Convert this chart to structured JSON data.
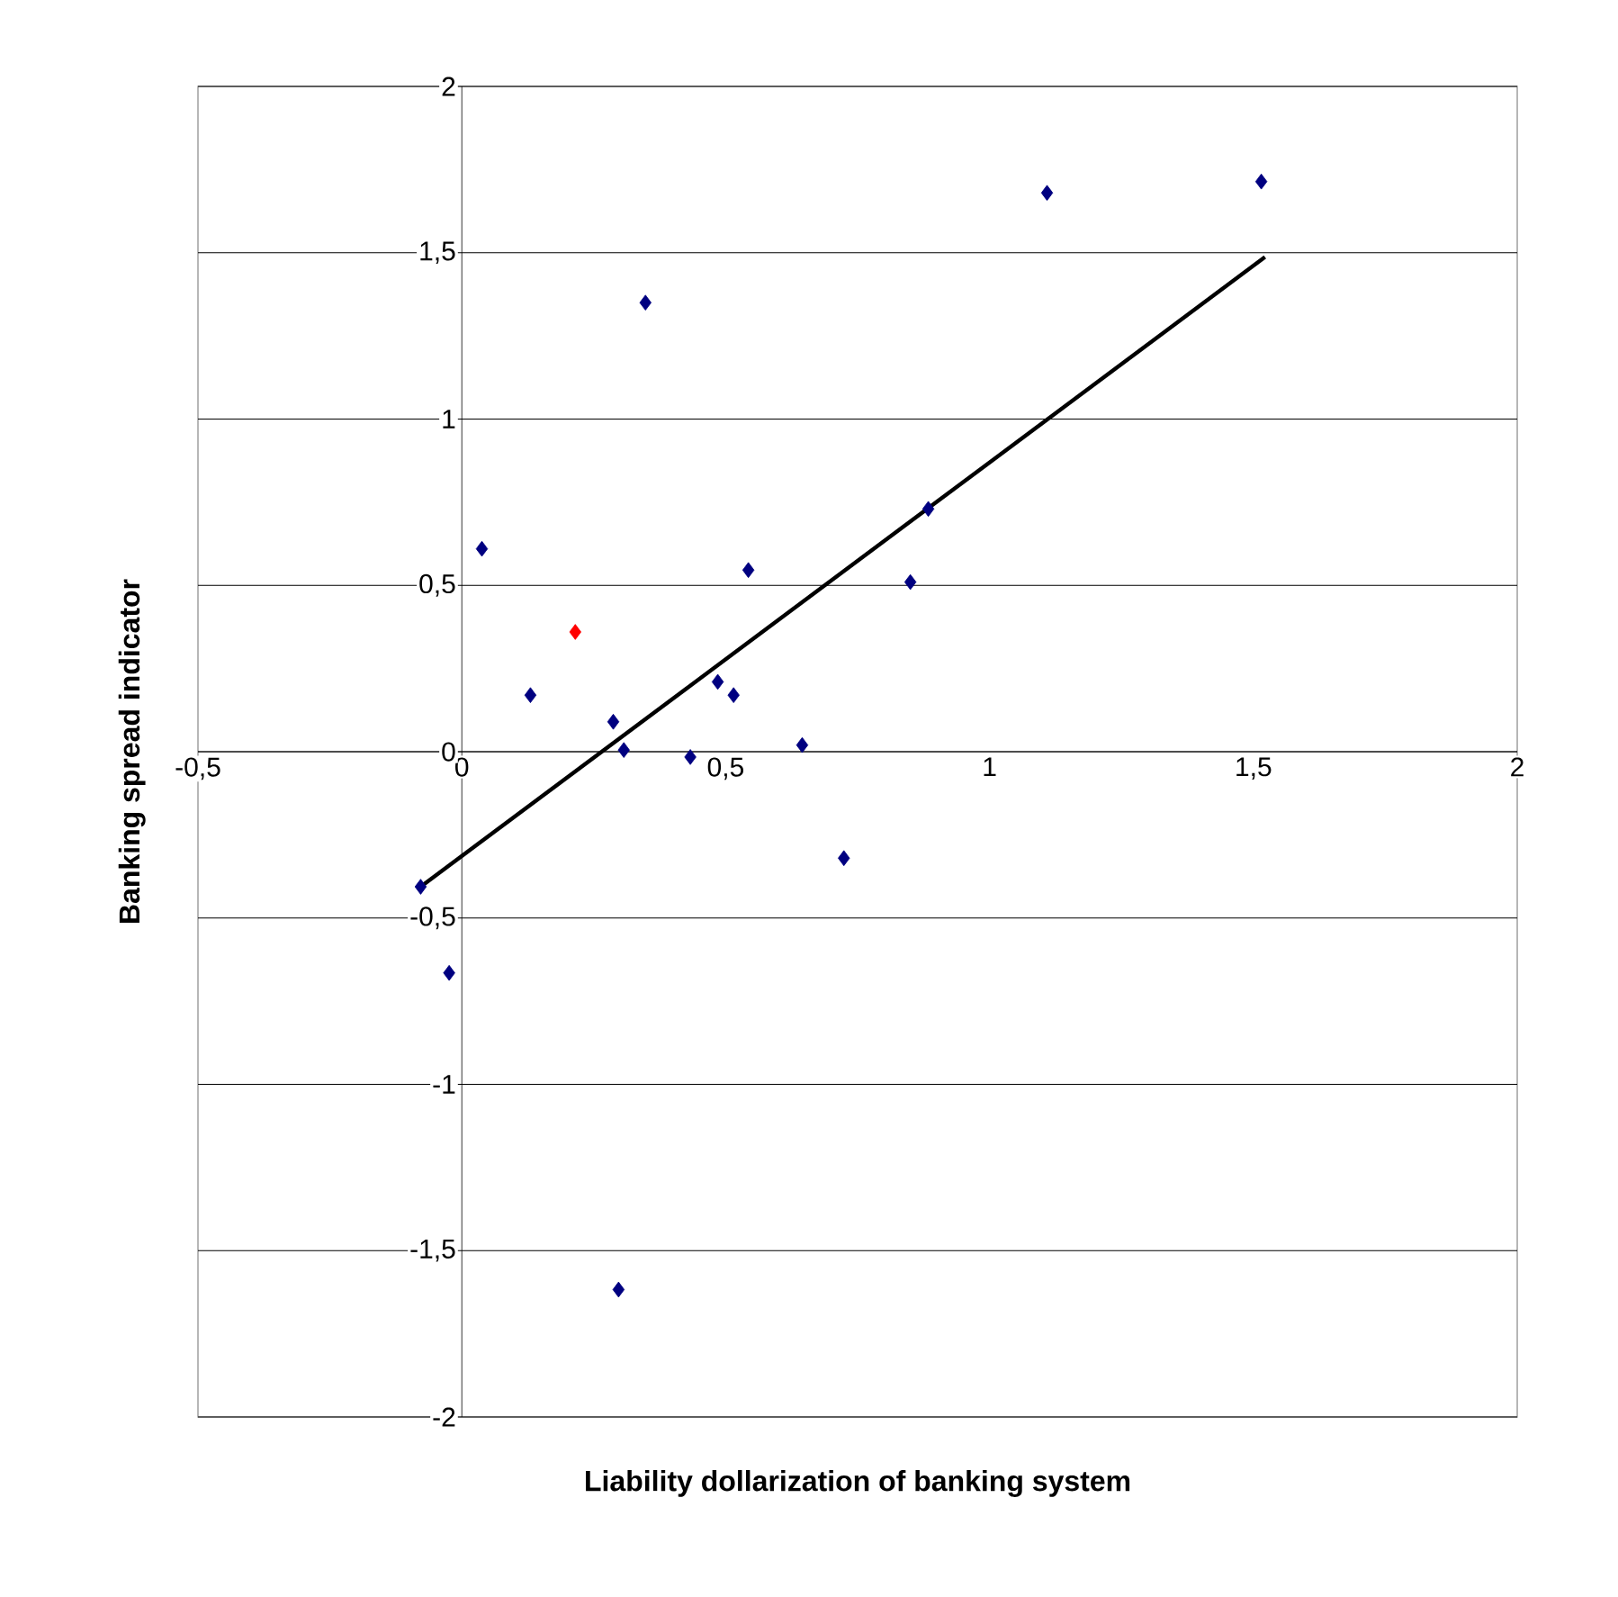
{
  "chart_data": {
    "type": "scatter",
    "xlabel": "Liability dollarization of banking system",
    "ylabel": "Banking spread indicator",
    "xlim": [
      -0.5,
      2
    ],
    "ylim": [
      -2,
      2
    ],
    "xticks": [
      {
        "value": -0.5,
        "label": "-0,5"
      },
      0,
      {
        "value": 0.5,
        "label": "0,5"
      },
      1,
      {
        "value": 1.5,
        "label": "1,5"
      },
      2
    ],
    "yticks": [
      -2,
      {
        "value": -1.5,
        "label": "-1,5"
      },
      -1,
      {
        "value": -0.5,
        "label": "-0,5"
      },
      0,
      {
        "value": 0.5,
        "label": "0,5"
      },
      1,
      {
        "value": 1.5,
        "label": "1,5"
      },
      2
    ],
    "grid": "y",
    "marker": "diamond",
    "series": [
      {
        "x": [
          1.515,
          1.109,
          0.348,
          0.038,
          0.884,
          0.543,
          0.85,
          0.215,
          0.13,
          0.287,
          0.485,
          0.515,
          0.307,
          0.433,
          0.645,
          0.724,
          -0.078,
          -0.024,
          0.297
        ],
        "values": [
          1.714,
          1.68,
          1.35,
          0.61,
          0.73,
          0.546,
          0.51,
          0.36,
          0.17,
          0.09,
          0.21,
          0.17,
          0.005,
          -0.016,
          0.02,
          -0.32,
          -0.406,
          -0.665,
          -1.617
        ],
        "colors": [
          "#000080",
          "#000080",
          "#000080",
          "#000080",
          "#000080",
          "#000080",
          "#000080",
          "#ff0000",
          "#000080",
          "#000080",
          "#000080",
          "#000080",
          "#000080",
          "#000080",
          "#000080",
          "#000080",
          "#000080",
          "#000080",
          "#000080"
        ]
      },
      {
        "type": "line",
        "x": [
          -0.078,
          1.522
        ],
        "values": [
          -0.406,
          1.487
        ],
        "color": "#000000",
        "marker": "none"
      }
    ]
  }
}
